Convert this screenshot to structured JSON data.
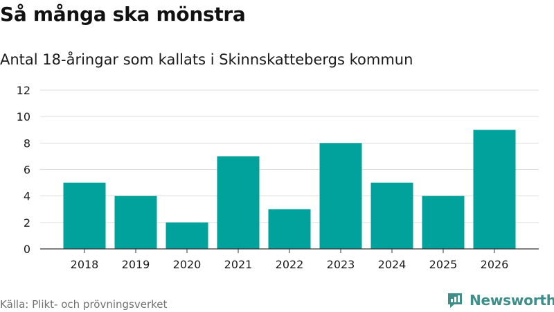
{
  "header": {
    "title": "Så många ska mönstra",
    "subtitle": "Antal 18-åringar som kallats i Skinnskattebergs kommun"
  },
  "footer": {
    "source": "Källa: Plikt- och prövningsverket",
    "brand": "Newsworthy"
  },
  "colors": {
    "bar": "#00a29b",
    "grid": "#dddddd",
    "axis": "#333333",
    "brand": "#3e8f8a"
  },
  "chart_data": {
    "type": "bar",
    "categories": [
      "2018",
      "2019",
      "2020",
      "2021",
      "2022",
      "2023",
      "2024",
      "2025",
      "2026"
    ],
    "values": [
      5,
      4,
      2,
      7,
      3,
      8,
      5,
      4,
      9
    ],
    "ylim": [
      0,
      12
    ],
    "yticks": [
      0,
      2,
      4,
      6,
      8,
      10,
      12
    ],
    "grid": true,
    "legend": "none"
  }
}
